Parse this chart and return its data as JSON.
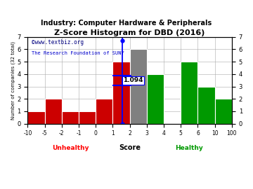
{
  "title": "Z-Score Histogram for DBD (2016)",
  "subtitle": "Industry: Computer Hardware & Peripherals",
  "watermark1": "©www.textbiz.org",
  "watermark2": "The Research Foundation of SUNY",
  "xlabel": "Score",
  "ylabel": "Number of companies (32 total)",
  "unhealthy_label": "Unhealthy",
  "healthy_label": "Healthy",
  "bin_labels": [
    "-10",
    "-5",
    "-2",
    "-1",
    "0",
    "1",
    "2",
    "3",
    "4",
    "5",
    "6",
    "10",
    "100"
  ],
  "bar_heights": [
    1,
    2,
    1,
    1,
    2,
    5,
    6,
    4,
    0,
    5,
    3,
    2
  ],
  "bar_colors": [
    "#cc0000",
    "#cc0000",
    "#cc0000",
    "#cc0000",
    "#cc0000",
    "#cc0000",
    "#808080",
    "#009900",
    "#009900",
    "#009900",
    "#009900",
    "#009900"
  ],
  "ylim": [
    0,
    7
  ],
  "yticks": [
    0,
    1,
    2,
    3,
    4,
    5,
    6,
    7
  ],
  "dbd_zscore_label": "1.094",
  "dbd_bar_index": 5,
  "background_color": "#ffffff",
  "grid_color": "#aaaaaa",
  "title_fontsize": 8,
  "subtitle_fontsize": 7
}
